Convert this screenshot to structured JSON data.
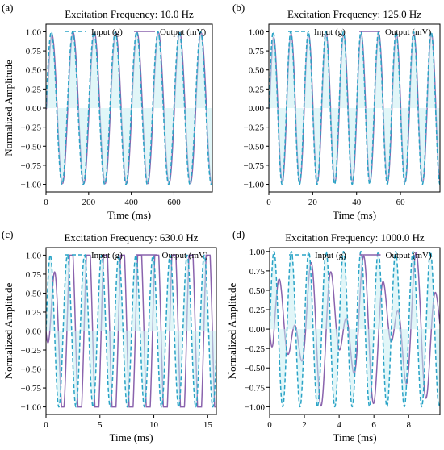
{
  "figure": {
    "colors": {
      "input": "#29a3c6",
      "output": "#8a63ad",
      "fill": "#c9eef3",
      "axis": "#000000"
    },
    "panel_labels": [
      "(a)",
      "(b)",
      "(c)",
      "(d)"
    ]
  },
  "chart_data": [
    {
      "type": "line",
      "panel": "(a)",
      "title": "Excitation Frequency: 10.0 Hz",
      "xlabel": "Time (ms)",
      "ylabel": "Normalized Amplitude",
      "xlim": [
        0,
        780
      ],
      "ylim": [
        -1.1,
        1.1
      ],
      "xticks": [
        0,
        200,
        400,
        600
      ],
      "yticks": [
        -1.0,
        -0.75,
        -0.5,
        -0.25,
        0.0,
        0.25,
        0.5,
        0.75,
        1.0
      ],
      "ytick_labels": [
        "−1.00",
        "−0.75",
        "−0.50",
        "−0.25",
        "0.00",
        "0.25",
        "0.50",
        "0.75",
        "1.00"
      ],
      "legend": "top",
      "series": [
        {
          "name": "Input (g)",
          "style": "dashed",
          "frequency_hz": 10.0,
          "amplitude": 1.0,
          "phase_deg": 0
        },
        {
          "name": "Output (mV)",
          "style": "solid",
          "frequency_hz": 10.0,
          "amplitude": 0.99,
          "phase_deg": -8,
          "decay_tau_ms": 8,
          "clip": 0.99
        }
      ]
    },
    {
      "type": "line",
      "panel": "(b)",
      "title": "Excitation Frequency: 125.0 Hz",
      "xlabel": "Time (ms)",
      "ylabel": "",
      "xlim": [
        0,
        78
      ],
      "ylim": [
        -1.1,
        1.1
      ],
      "xticks": [
        0,
        20,
        40,
        60
      ],
      "yticks": [
        -1.0,
        -0.75,
        -0.5,
        -0.25,
        0.0,
        0.25,
        0.5,
        0.75,
        1.0
      ],
      "ytick_labels": [
        "−1.00",
        "−0.75",
        "−0.50",
        "−0.25",
        "0.00",
        "0.25",
        "0.50",
        "0.75",
        "1.00"
      ],
      "legend": "top",
      "series": [
        {
          "name": "Input (g)",
          "style": "dashed",
          "frequency_hz": 125.0,
          "amplitude": 1.0,
          "phase_deg": 0
        },
        {
          "name": "Output (mV)",
          "style": "solid",
          "frequency_hz": 125.0,
          "amplitude": 0.97,
          "phase_deg": -6,
          "decay_tau_ms": 0.7,
          "clip": 0.97
        }
      ]
    },
    {
      "type": "line",
      "panel": "(c)",
      "title": "Excitation Frequency: 630.0 Hz",
      "xlabel": "Time (ms)",
      "ylabel": "Normalized Amplitude",
      "xlim": [
        0,
        15.8
      ],
      "ylim": [
        -1.1,
        1.1
      ],
      "xticks": [
        0,
        5,
        10,
        15
      ],
      "yticks": [
        -1.0,
        -0.75,
        -0.5,
        -0.25,
        0.0,
        0.25,
        0.5,
        0.75,
        1.0
      ],
      "ytick_labels": [
        "−1.00",
        "−0.75",
        "−0.50",
        "−0.25",
        "0.00",
        "0.25",
        "0.50",
        "0.75",
        "1.00"
      ],
      "legend": "top",
      "series": [
        {
          "name": "Input (g)",
          "style": "dashed",
          "frequency_hz": 630.0,
          "amplitude": 1.0,
          "phase_deg": 0
        },
        {
          "name": "Output (mV)",
          "style": "solid",
          "frequency_hz": 630.0,
          "amplitude": 1.35,
          "phase_deg": -80,
          "decay_tau_ms": 0.9,
          "clip": 1.0
        }
      ]
    },
    {
      "type": "line",
      "panel": "(d)",
      "title": "Excitation Frequency: 1000.0 Hz",
      "xlabel": "Time (ms)",
      "ylabel": "Normalized Amplitude",
      "xlim": [
        0,
        9.8
      ],
      "ylim": [
        -1.1,
        1.05
      ],
      "xticks": [
        0,
        2,
        4,
        6,
        8
      ],
      "yticks": [
        -1.0,
        -0.75,
        -0.5,
        -0.25,
        0.0,
        0.25,
        0.5,
        0.75,
        1.0
      ],
      "ytick_labels": [
        "−1.00",
        "−0.75",
        "−0.50",
        "−0.25",
        "0.00",
        "0.25",
        "0.50",
        "0.75",
        "1.00"
      ],
      "legend": "top",
      "series": [
        {
          "name": "Input (g)",
          "style": "dashed",
          "frequency_hz": 1000.0,
          "amplitude": 1.0,
          "phase_deg": 0
        },
        {
          "name": "Output (mV)",
          "style": "solid",
          "frequency_hz": 1000.0,
          "amplitude": 0.55,
          "phase_deg": -70,
          "decay_tau_ms": 0.6,
          "transient_amp": 0.45,
          "transient_freq_hz": 650
        }
      ]
    }
  ]
}
